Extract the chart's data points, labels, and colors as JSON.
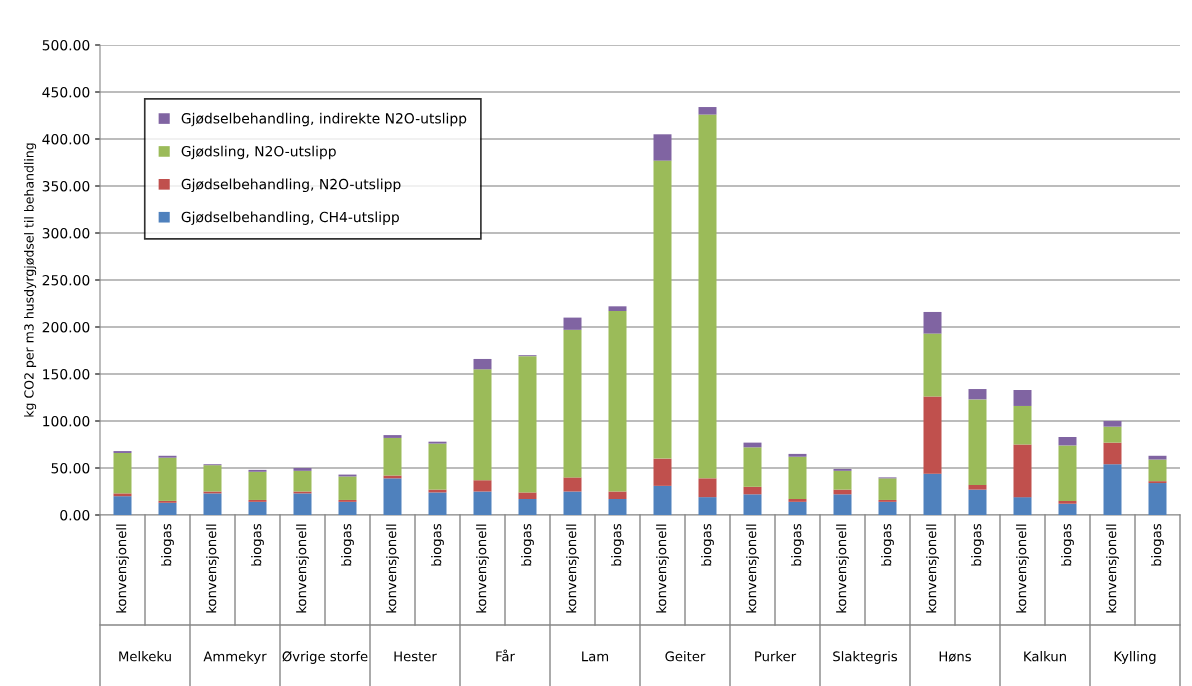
{
  "chart_data": {
    "type": "bar",
    "stacked": true,
    "ylabel": "kg CO2 per m3 husdyrgjødsel til behandling",
    "categories": [
      "konvensjonell",
      "biogas",
      "konvensjonell",
      "biogas",
      "konvensjonell",
      "biogas",
      "konvensjonell",
      "biogas",
      "konvensjonell",
      "biogas",
      "konvensjonell",
      "biogas",
      "konvensjonell",
      "biogas",
      "konvensjonell",
      "biogas",
      "konvensjonell",
      "biogas",
      "konvensjonell",
      "biogas",
      "konvensjonell",
      "biogas",
      "konvensjonell",
      "biogas"
    ],
    "series": [
      {
        "name": "Gjødselbehandling, CH4-utslipp",
        "color": "#4f81bd",
        "values": [
          20,
          13,
          23,
          14,
          23,
          14,
          39,
          24,
          25,
          17,
          25,
          17,
          31,
          19,
          22,
          14,
          22,
          14,
          44,
          27,
          19,
          12,
          54,
          34
        ]
      },
      {
        "name": "Gjødselbehandling, N2O-utslipp",
        "color": "#c0504d",
        "values": [
          3,
          2,
          2,
          2,
          2,
          2,
          3,
          3,
          12,
          7,
          15,
          8,
          29,
          20,
          8,
          3,
          5,
          2,
          82,
          5,
          56,
          3,
          23,
          2
        ]
      },
      {
        "name": "Gjødsling, N2O-utslipp",
        "color": "#9bbb59",
        "values": [
          43,
          46,
          28,
          30,
          22,
          25,
          40,
          49,
          118,
          145,
          157,
          192,
          317,
          387,
          42,
          45,
          20,
          23,
          67,
          91,
          41,
          59,
          17,
          23
        ]
      },
      {
        "name": "Gjødselbehandling, indirekte N2O-utslipp",
        "color": "#8064a2",
        "values": [
          2,
          2,
          1,
          2,
          3,
          2,
          3,
          2,
          11,
          1,
          13,
          5,
          28,
          8,
          5,
          3,
          2,
          1,
          23,
          11,
          17,
          9,
          6,
          4
        ]
      }
    ],
    "annotations": [
      "Melkeku",
      "Ammekyr",
      "Øvrige storfe",
      "Hester",
      "Får",
      "Lam",
      "Geiter",
      "Purker",
      "Slaktegris",
      "Høns",
      "Kalkun",
      "Kylling"
    ],
    "ylim": [
      0,
      500
    ],
    "yticks": [
      {
        "value": 0,
        "label": "0.00"
      },
      {
        "value": 50,
        "label": "50.00"
      },
      {
        "value": 100,
        "label": "100.00"
      },
      {
        "value": 150,
        "label": "150.00"
      },
      {
        "value": 200,
        "label": "200.00"
      },
      {
        "value": 250,
        "label": "250.00"
      },
      {
        "value": 300,
        "label": "300.00"
      },
      {
        "value": 350,
        "label": "350.00"
      },
      {
        "value": 400,
        "label": "400.00"
      },
      {
        "value": 450,
        "label": "450.00"
      },
      {
        "value": 500,
        "label": "500.00"
      }
    ],
    "grid": "y",
    "legend": "top left"
  }
}
